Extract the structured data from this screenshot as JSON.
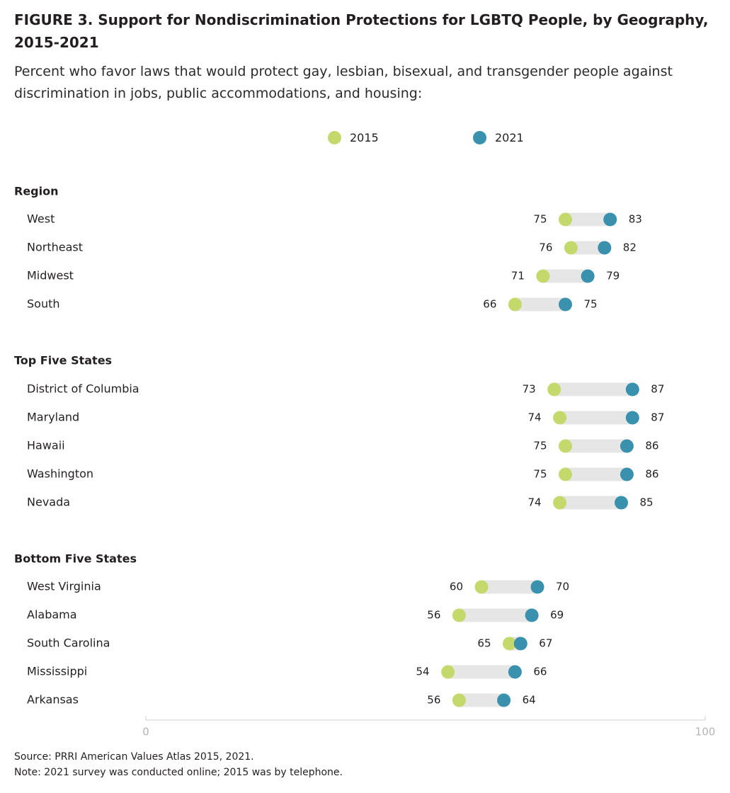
{
  "figure": {
    "title": "FIGURE 3.  Support for Nondiscrimination Protections for LGBTQ People, by Geography, 2015-2021",
    "subtitle": "Percent who favor laws that would protect gay, lesbian, bisexual, and transgender people against discrimination in jobs, public accommodations, and housing:",
    "source": "Source: PRRI American Values Atlas 2015, 2021.",
    "note": "Note: 2021 survey was conducted online; 2015 was by telephone."
  },
  "legend": [
    {
      "label": "2015",
      "color": "#c3d96b"
    },
    {
      "label": "2021",
      "color": "#3a91ad"
    }
  ],
  "chart_data": {
    "type": "dumbbell",
    "xlim": [
      0,
      100
    ],
    "x_ticks": [
      "0",
      "100"
    ],
    "series": [
      {
        "name": "2015",
        "color": "#c3d96b"
      },
      {
        "name": "2021",
        "color": "#3a91ad"
      }
    ],
    "groups": [
      {
        "name": "Region",
        "rows": [
          {
            "label": "West",
            "v2015": 75,
            "v2021": 83
          },
          {
            "label": "Northeast",
            "v2015": 76,
            "v2021": 82
          },
          {
            "label": "Midwest",
            "v2015": 71,
            "v2021": 79
          },
          {
            "label": "South",
            "v2015": 66,
            "v2021": 75
          }
        ]
      },
      {
        "name": "Top Five States",
        "rows": [
          {
            "label": "District of Columbia",
            "v2015": 73,
            "v2021": 87
          },
          {
            "label": "Maryland",
            "v2015": 74,
            "v2021": 87
          },
          {
            "label": "Hawaii",
            "v2015": 75,
            "v2021": 86
          },
          {
            "label": "Washington",
            "v2015": 75,
            "v2021": 86
          },
          {
            "label": "Nevada",
            "v2015": 74,
            "v2021": 85
          }
        ]
      },
      {
        "name": "Bottom Five States",
        "rows": [
          {
            "label": "West Virginia",
            "v2015": 60,
            "v2021": 70
          },
          {
            "label": "Alabama",
            "v2015": 56,
            "v2021": 69
          },
          {
            "label": "South Carolina",
            "v2015": 65,
            "v2021": 67
          },
          {
            "label": "Mississippi",
            "v2015": 54,
            "v2021": 66
          },
          {
            "label": "Arkansas",
            "v2015": 56,
            "v2021": 64
          }
        ]
      }
    ]
  }
}
